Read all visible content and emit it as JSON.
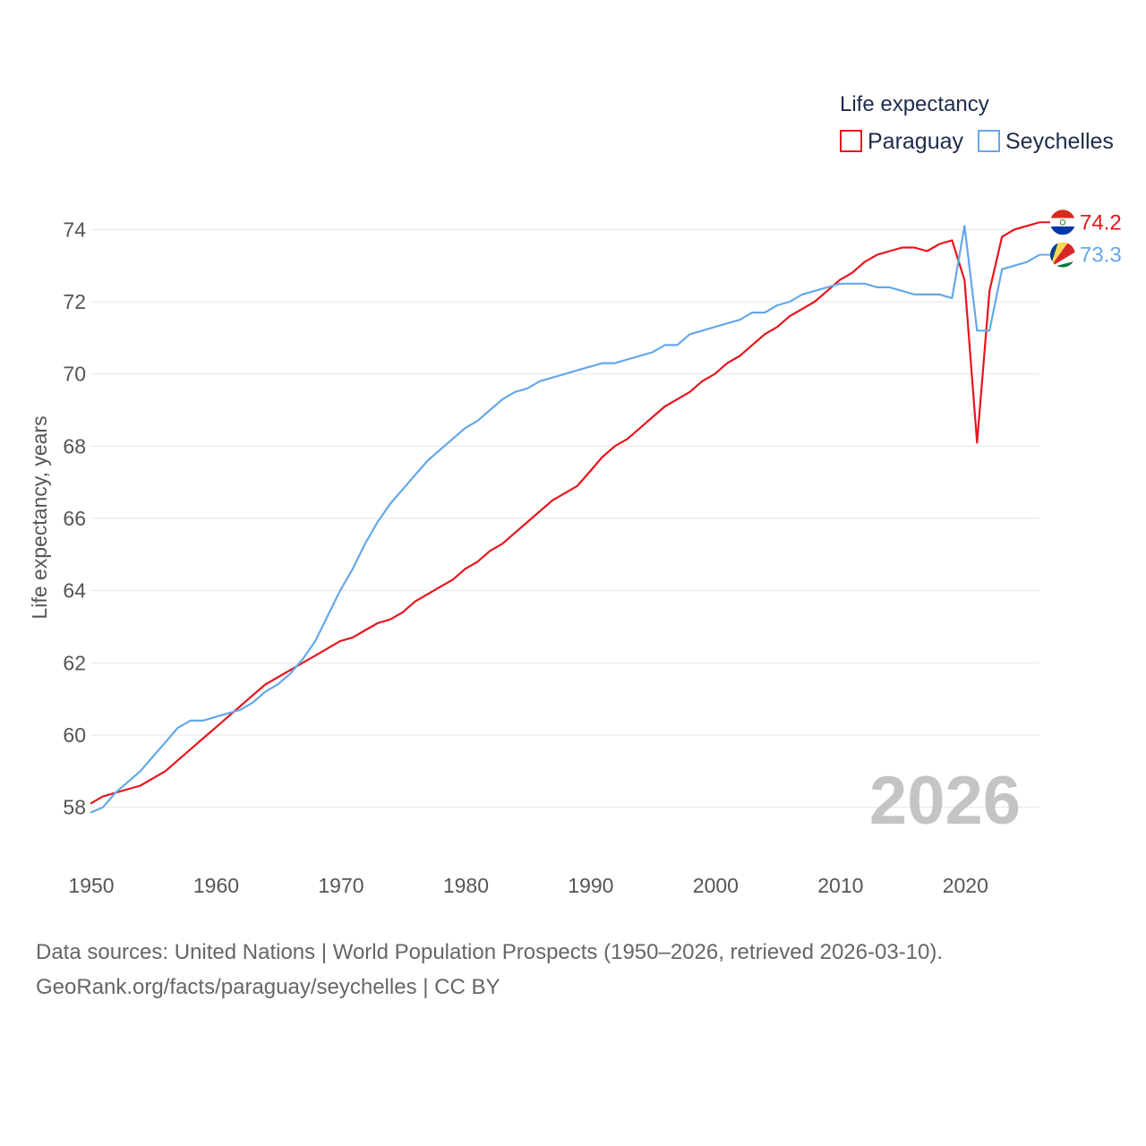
{
  "chart_data": {
    "type": "line",
    "legend_title": "Life expectancy",
    "legend_position": "top-right",
    "ylabel": "Life expectancy, years",
    "xlabel": "",
    "xlim": [
      1950,
      2026
    ],
    "ylim": [
      57,
      75
    ],
    "x_ticks": [
      1950,
      1960,
      1970,
      1980,
      1990,
      2000,
      2010,
      2020
    ],
    "y_ticks": [
      58,
      60,
      62,
      64,
      66,
      68,
      70,
      72,
      74
    ],
    "grid": "horizontal",
    "year_watermark": "2026",
    "years": [
      1950,
      1951,
      1952,
      1953,
      1954,
      1955,
      1956,
      1957,
      1958,
      1959,
      1960,
      1961,
      1962,
      1963,
      1964,
      1965,
      1966,
      1967,
      1968,
      1969,
      1970,
      1971,
      1972,
      1973,
      1974,
      1975,
      1976,
      1977,
      1978,
      1979,
      1980,
      1981,
      1982,
      1983,
      1984,
      1985,
      1986,
      1987,
      1988,
      1989,
      1990,
      1991,
      1992,
      1993,
      1994,
      1995,
      1996,
      1997,
      1998,
      1999,
      2000,
      2001,
      2002,
      2003,
      2004,
      2005,
      2006,
      2007,
      2008,
      2009,
      2010,
      2011,
      2012,
      2013,
      2014,
      2015,
      2016,
      2017,
      2018,
      2019,
      2020,
      2021,
      2022,
      2023,
      2024,
      2025,
      2026
    ],
    "series": [
      {
        "name": "Paraguay",
        "color": "#e8141c",
        "end_label": "74.2",
        "flag": "paraguay-flag",
        "values": [
          58.1,
          58.3,
          58.4,
          58.5,
          58.6,
          58.8,
          59.0,
          59.3,
          59.6,
          59.9,
          60.2,
          60.5,
          60.8,
          61.1,
          61.4,
          61.6,
          61.8,
          62.0,
          62.2,
          62.4,
          62.6,
          62.7,
          62.9,
          63.1,
          63.2,
          63.4,
          63.7,
          63.9,
          64.1,
          64.3,
          64.6,
          64.8,
          65.1,
          65.3,
          65.6,
          65.9,
          66.2,
          66.5,
          66.7,
          66.9,
          67.3,
          67.7,
          68.0,
          68.2,
          68.5,
          68.8,
          69.1,
          69.3,
          69.5,
          69.8,
          70.0,
          70.3,
          70.5,
          70.8,
          71.1,
          71.3,
          71.6,
          71.8,
          72.0,
          72.3,
          72.6,
          72.8,
          73.1,
          73.3,
          73.4,
          73.5,
          73.5,
          73.4,
          73.6,
          73.7,
          72.6,
          68.1,
          72.3,
          73.8,
          74.0,
          74.1,
          74.2
        ]
      },
      {
        "name": "Seychelles",
        "color": "#64a8e8",
        "end_label": "73.3",
        "flag": "seychelles-flag",
        "values": [
          57.85,
          58.0,
          58.4,
          58.7,
          59.0,
          59.4,
          59.8,
          60.2,
          60.4,
          60.4,
          60.5,
          60.6,
          60.7,
          60.9,
          61.2,
          61.4,
          61.7,
          62.1,
          62.6,
          63.3,
          64.0,
          64.6,
          65.3,
          65.9,
          66.4,
          66.8,
          67.2,
          67.6,
          67.9,
          68.2,
          68.5,
          68.7,
          69.0,
          69.3,
          69.5,
          69.6,
          69.8,
          69.9,
          70.0,
          70.1,
          70.2,
          70.3,
          70.3,
          70.4,
          70.5,
          70.6,
          70.8,
          70.8,
          71.1,
          71.2,
          71.3,
          71.4,
          71.5,
          71.7,
          71.7,
          71.9,
          72.0,
          72.2,
          72.3,
          72.4,
          72.5,
          72.5,
          72.5,
          72.4,
          72.4,
          72.3,
          72.2,
          72.2,
          72.2,
          72.1,
          74.1,
          71.2,
          71.2,
          72.9,
          73.0,
          73.1,
          73.3
        ]
      }
    ]
  },
  "footer": {
    "line1": "Data sources: United Nations | World Population Prospects (1950–2026, retrieved 2026-03-10).",
    "line2": "GeoRank.org/facts/paraguay/seychelles | CC BY"
  }
}
